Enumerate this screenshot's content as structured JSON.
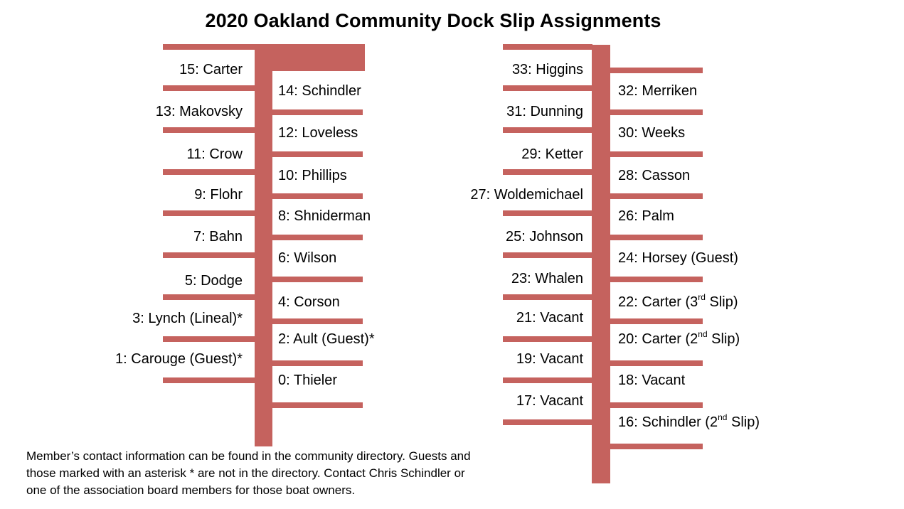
{
  "title": "2020 Oakland Community Dock Slip Assignments",
  "colors": {
    "dock": "#c5625e"
  },
  "left_dock": {
    "west_slips": [
      "15: Carter",
      "13: Makovsky",
      "11: Crow",
      "9: Flohr",
      "7: Bahn",
      "5: Dodge",
      "3: Lynch (Lineal)*",
      "1: Carouge (Guest)*"
    ],
    "east_slips": [
      "14: Schindler",
      "12: Loveless",
      "10: Phillips",
      "8: Shniderman",
      "6: Wilson",
      "4: Corson",
      "2: Ault (Guest)*",
      "0: Thieler"
    ]
  },
  "right_dock": {
    "west_slips": [
      "33: Higgins",
      "31: Dunning",
      "29: Ketter",
      "27: Woldemichael",
      "25: Johnson",
      "23: Whalen",
      "21: Vacant",
      "19: Vacant",
      "17: Vacant"
    ],
    "east_slips": [
      {
        "text": "32: Merriken"
      },
      {
        "text": "30: Weeks"
      },
      {
        "text": "28: Casson"
      },
      {
        "text": "26: Palm"
      },
      {
        "text": "24: Horsey (Guest)"
      },
      {
        "text": "22: Carter (3",
        "sup": "rd",
        "after": " Slip)"
      },
      {
        "text": "20: Carter (2",
        "sup": "nd",
        "after": " Slip)"
      },
      {
        "text": "18: Vacant"
      },
      {
        "text": "16: Schindler (2",
        "sup": "nd",
        "after": " Slip)"
      }
    ]
  },
  "footer": {
    "line1": "Member’s contact information can be found in the community directory.  Guests and",
    "line2": "those marked with an asterisk * are not in the directory.  Contact Chris Schindler or",
    "line3": "one of the association board members for those boat owners."
  }
}
